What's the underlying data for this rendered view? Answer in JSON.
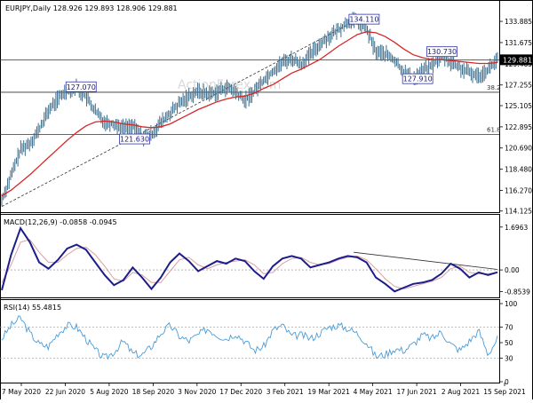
{
  "chart_data": {
    "type": "line",
    "colors": {
      "price": "#3b6d8c",
      "sma": "#d62728",
      "macd": "#1c1c8a",
      "signal": "#d9a0a0",
      "rsi": "#4a9cd8",
      "line": "#555555",
      "grid": "#cccccc"
    },
    "x_tick_labels": [
      "7 May 2020",
      "22 Jun 2020",
      "5 Aug 2020",
      "18 Sep 2020",
      "3 Nov 2020",
      "17 Dec 2020",
      "3 Feb 2021",
      "19 Mar 2021",
      "4 May 2021",
      "17 Jun 2021",
      "2 Aug 2021",
      "15 Sep 2021"
    ],
    "price_panel": {
      "title": "EURJPY,Daily  128.926 129.893 128.906 129.881",
      "ylim": [
        114.1,
        135.0
      ],
      "y_ticks": [
        "133.885",
        "131.675",
        "129.465",
        "127.255",
        "125.105",
        "122.895",
        "120.690",
        "118.480",
        "116.270",
        "114.125"
      ],
      "last_price": "129.881",
      "watermark": "ActionForex.com",
      "price_path": [
        115.3,
        117.8,
        120.5,
        121.2,
        122.6,
        124.6,
        125.8,
        126.8,
        127.0,
        126.0,
        124.5,
        123.4,
        123.2,
        122.8,
        123.0,
        121.8,
        122.1,
        123.3,
        124.3,
        125.3,
        126.1,
        126.6,
        126.3,
        126.5,
        127.0,
        126.5,
        125.6,
        126.6,
        127.8,
        128.7,
        129.6,
        130.0,
        129.4,
        130.4,
        131.5,
        132.3,
        133.0,
        133.8,
        134.0,
        133.1,
        130.7,
        130.5,
        129.8,
        128.6,
        127.9,
        128.7,
        129.3,
        130.3,
        129.6,
        129.0,
        128.5,
        128.2,
        128.9,
        129.9
      ],
      "sma_path": [
        115.7,
        116.3,
        117.1,
        117.9,
        118.8,
        119.7,
        120.6,
        121.5,
        122.3,
        123.0,
        123.4,
        123.5,
        123.4,
        123.2,
        123.1,
        122.9,
        122.8,
        122.9,
        123.2,
        123.7,
        124.2,
        124.7,
        125.1,
        125.5,
        125.8,
        126.0,
        126.1,
        126.4,
        126.9,
        127.3,
        127.9,
        128.5,
        128.9,
        129.4,
        129.9,
        130.6,
        131.3,
        131.9,
        132.5,
        132.8,
        132.7,
        132.3,
        131.7,
        131.0,
        130.4,
        130.1,
        129.9,
        129.9,
        129.8,
        129.7,
        129.6,
        129.5,
        129.5,
        129.6
      ],
      "levels": [
        {
          "label": "38.2",
          "value": 126.5
        },
        {
          "label": "61.8",
          "value": 122.1
        },
        {
          "label": "",
          "value": 129.88
        }
      ],
      "annotations": [
        {
          "text": "127.070",
          "value": 127.07,
          "t": 0.16
        },
        {
          "text": "121.630",
          "value": 121.63,
          "t": 0.268
        },
        {
          "text": "134.110",
          "value": 134.11,
          "t": 0.731
        },
        {
          "text": "130.730",
          "value": 130.73,
          "t": 0.888
        },
        {
          "text": "127.910",
          "value": 127.91,
          "t": 0.839
        }
      ],
      "trendline": {
        "from": {
          "t": 0.0,
          "value": 114.6
        },
        "to": {
          "t": 0.73,
          "value": 134.4
        }
      }
    },
    "macd_panel": {
      "title": "MACD(12,26,9) -0.0858 -0.0945",
      "ylim": [
        -1.05,
        1.9
      ],
      "y_ticks": [
        "1.6963",
        "0.00",
        "-0.8539"
      ],
      "macd_path": [
        -0.8,
        0.6,
        1.65,
        1.1,
        0.3,
        0.05,
        0.4,
        0.85,
        1.0,
        0.8,
        0.3,
        -0.2,
        -0.6,
        -0.4,
        0.1,
        -0.3,
        -0.75,
        -0.3,
        0.3,
        0.65,
        0.35,
        -0.05,
        0.15,
        0.35,
        0.25,
        0.45,
        0.35,
        -0.05,
        -0.35,
        0.15,
        0.45,
        0.55,
        0.45,
        0.1,
        0.2,
        0.3,
        0.45,
        0.55,
        0.5,
        0.3,
        -0.3,
        -0.55,
        -0.85,
        -0.7,
        -0.55,
        -0.5,
        -0.4,
        -0.15,
        0.25,
        0.05,
        -0.3,
        -0.1,
        -0.2,
        -0.09
      ],
      "signal_path": [
        -0.5,
        0.2,
        1.1,
        1.2,
        0.7,
        0.3,
        0.3,
        0.6,
        0.85,
        0.9,
        0.6,
        0.15,
        -0.35,
        -0.45,
        -0.1,
        -0.2,
        -0.5,
        -0.5,
        -0.05,
        0.4,
        0.5,
        0.2,
        0.05,
        0.2,
        0.3,
        0.35,
        0.4,
        0.2,
        -0.15,
        -0.1,
        0.25,
        0.45,
        0.5,
        0.3,
        0.2,
        0.25,
        0.4,
        0.5,
        0.55,
        0.4,
        0.05,
        -0.35,
        -0.65,
        -0.75,
        -0.65,
        -0.55,
        -0.45,
        -0.3,
        0.05,
        0.15,
        -0.1,
        -0.15,
        -0.15,
        -0.09
      ],
      "trendline": {
        "from": {
          "t": 0.71,
          "value": 0.7
        },
        "to": {
          "t": 1.0,
          "value": 0.02
        }
      }
    },
    "rsi_panel": {
      "title": "RSI(14) 55.4815",
      "ylim": [
        0,
        100
      ],
      "y_ticks": [
        "100",
        "70",
        "50",
        "30",
        "0"
      ],
      "rsi_path": [
        55,
        72,
        82,
        62,
        48,
        45,
        62,
        72,
        70,
        55,
        40,
        30,
        38,
        52,
        36,
        34,
        45,
        62,
        72,
        58,
        52,
        60,
        68,
        60,
        55,
        62,
        52,
        40,
        45,
        66,
        72,
        58,
        60,
        55,
        62,
        70,
        72,
        68,
        62,
        50,
        32,
        35,
        42,
        40,
        48,
        60,
        55,
        64,
        48,
        40,
        52,
        65,
        35,
        55
      ]
    }
  }
}
